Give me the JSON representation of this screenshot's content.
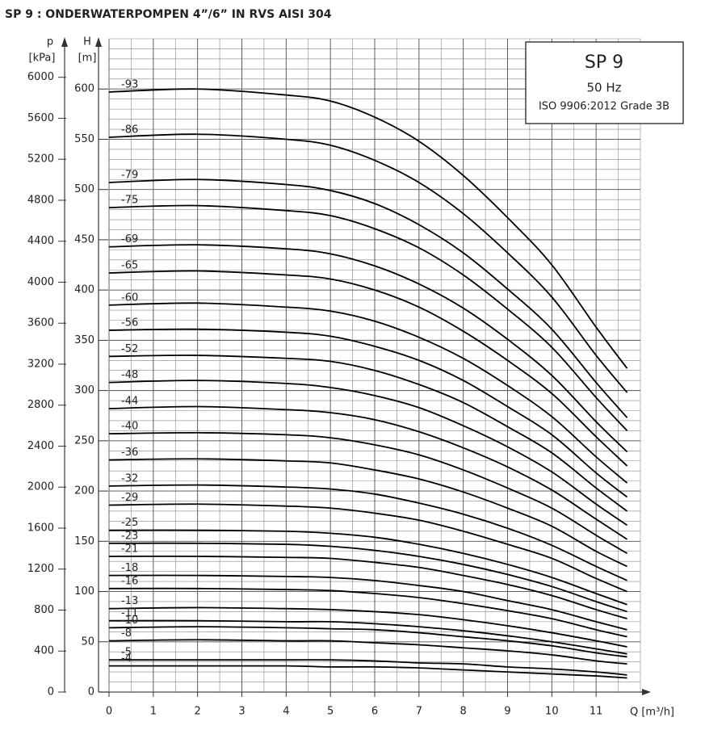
{
  "page_title": "SP 9 : ONDERWATERPOMPEN 4”/6” IN RVS AISI 304",
  "chart_data": {
    "type": "line",
    "info": {
      "model": "SP 9",
      "frequency": "50 Hz",
      "standard": "ISO 9906:2012 Grade 3B"
    },
    "y_label": "H",
    "y_unit": "[m]",
    "y2_label": "p",
    "y2_unit": "[kPa]",
    "x_label": "Q [m³/h]",
    "x": [
      0,
      2,
      4,
      5,
      6,
      7,
      8,
      9,
      10,
      11,
      11.7
    ],
    "xlim": [
      0,
      12
    ],
    "xticks": [
      0,
      1,
      2,
      3,
      4,
      5,
      6,
      7,
      8,
      9,
      10,
      11
    ],
    "ylim": [
      0,
      650
    ],
    "yticks": [
      0,
      50,
      100,
      150,
      200,
      250,
      300,
      350,
      400,
      450,
      500,
      550,
      600
    ],
    "y2lim": [
      0,
      6376
    ],
    "y2ticks": [
      0,
      400,
      800,
      1200,
      1600,
      2000,
      2400,
      2800,
      3200,
      3600,
      4000,
      4400,
      4800,
      5200,
      5600,
      6000
    ],
    "grid": true,
    "series": [
      {
        "name": "-93",
        "color": "#000000",
        "values": [
          597,
          600,
          594,
          588,
          572,
          548,
          514,
          472,
          425,
          363,
          322
        ]
      },
      {
        "name": "-86",
        "color": "#000000",
        "values": [
          552,
          555,
          550,
          544,
          529,
          507,
          476,
          437,
          393,
          335,
          298
        ]
      },
      {
        "name": "-79",
        "color": "#000000",
        "values": [
          507,
          510,
          505,
          499,
          486,
          465,
          437,
          401,
          361,
          308,
          273
        ]
      },
      {
        "name": "-75",
        "color": "#000000",
        "values": [
          482,
          484,
          479,
          474,
          461,
          442,
          415,
          381,
          343,
          293,
          260
        ]
      },
      {
        "name": "-69",
        "color": "#000000",
        "values": [
          443,
          445,
          441,
          436,
          424,
          406,
          382,
          351,
          315,
          269,
          239
        ]
      },
      {
        "name": "-65",
        "color": "#000000",
        "values": [
          417,
          419,
          415,
          411,
          400,
          383,
          359,
          330,
          297,
          254,
          225
        ]
      },
      {
        "name": "-60",
        "color": "#000000",
        "values": [
          385,
          387,
          383,
          379,
          369,
          353,
          332,
          305,
          274,
          234,
          208
        ]
      },
      {
        "name": "-56",
        "color": "#000000",
        "values": [
          360,
          361,
          358,
          354,
          344,
          330,
          310,
          284,
          256,
          218,
          194
        ]
      },
      {
        "name": "-52",
        "color": "#000000",
        "values": [
          334,
          335,
          332,
          329,
          320,
          306,
          288,
          264,
          238,
          203,
          180
        ]
      },
      {
        "name": "-48",
        "color": "#000000",
        "values": [
          308,
          310,
          307,
          303,
          295,
          283,
          265,
          244,
          219,
          187,
          166
        ]
      },
      {
        "name": "-44",
        "color": "#000000",
        "values": [
          282,
          284,
          281,
          278,
          271,
          259,
          243,
          224,
          201,
          172,
          152
        ]
      },
      {
        "name": "-40",
        "color": "#000000",
        "values": [
          257,
          258,
          256,
          253,
          246,
          236,
          221,
          203,
          183,
          156,
          138
        ]
      },
      {
        "name": "-36",
        "color": "#000000",
        "values": [
          231,
          232,
          230,
          228,
          221,
          212,
          199,
          183,
          165,
          140,
          125
        ]
      },
      {
        "name": "-32",
        "color": "#000000",
        "values": [
          205,
          206,
          204,
          202,
          197,
          188,
          177,
          163,
          146,
          125,
          111
        ]
      },
      {
        "name": "-29",
        "color": "#000000",
        "values": [
          186,
          187,
          185,
          183,
          178,
          171,
          160,
          147,
          133,
          113,
          100
        ]
      },
      {
        "name": "-25",
        "color": "#000000",
        "values": [
          161,
          161,
          160,
          158,
          154,
          147,
          138,
          127,
          114,
          98,
          87
        ]
      },
      {
        "name": "-23",
        "color": "#000000",
        "values": [
          148,
          148,
          147,
          145,
          141,
          135,
          127,
          117,
          105,
          90,
          80
        ]
      },
      {
        "name": "-21",
        "color": "#000000",
        "values": [
          135,
          135,
          134,
          133,
          129,
          124,
          116,
          107,
          96,
          82,
          73
        ]
      },
      {
        "name": "-18",
        "color": "#000000",
        "values": [
          116,
          116,
          115,
          114,
          111,
          106,
          100,
          91,
          82,
          70,
          62
        ]
      },
      {
        "name": "-16",
        "color": "#000000",
        "values": [
          103,
          103,
          102,
          101,
          98,
          94,
          88,
          81,
          73,
          62,
          55
        ]
      },
      {
        "name": "-13",
        "color": "#000000",
        "values": [
          83,
          84,
          83,
          82,
          80,
          77,
          72,
          66,
          59,
          51,
          45
        ]
      },
      {
        "name": "-11",
        "color": "#000000",
        "values": [
          71,
          71,
          70,
          70,
          68,
          65,
          61,
          56,
          50,
          43,
          38
        ]
      },
      {
        "name": "-10",
        "color": "#000000",
        "values": [
          64,
          65,
          64,
          63,
          62,
          59,
          55,
          51,
          46,
          39,
          35
        ]
      },
      {
        "name": "-8",
        "color": "#000000",
        "values": [
          51,
          52,
          51,
          51,
          49,
          47,
          44,
          41,
          37,
          31,
          28
        ]
      },
      {
        "name": "-5",
        "color": "#000000",
        "values": [
          32,
          32,
          32,
          32,
          31,
          29,
          28,
          25,
          23,
          20,
          17
        ]
      },
      {
        "name": "-4",
        "color": "#000000",
        "values": [
          26,
          26,
          26,
          25,
          25,
          24,
          22,
          20,
          18,
          16,
          14
        ]
      }
    ]
  }
}
